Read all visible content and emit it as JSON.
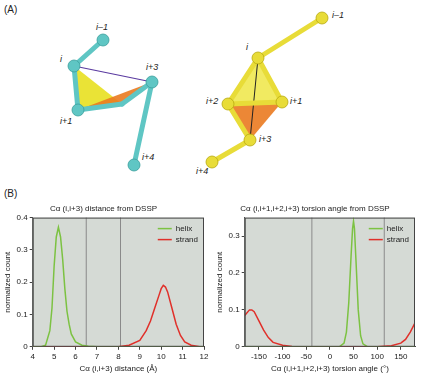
{
  "panel_a": {
    "letter": "(A)",
    "structures": [
      {
        "labels": [
          "i–1",
          "i",
          "i+1",
          "i+3",
          "i+4"
        ]
      },
      {
        "labels": [
          "i–1",
          "i",
          "i+1",
          "i+2",
          "i+3",
          "i+4"
        ]
      }
    ]
  },
  "panel_b": {
    "letter": "(B)"
  },
  "chart_data": [
    {
      "type": "line",
      "title": "Cα (i,i+3) distance from DSSP",
      "x_label": "Cα (i,i+3) distance (Å)",
      "y_label": "normalized count",
      "xlim": [
        4,
        12
      ],
      "xticks": [
        4,
        5,
        6,
        7,
        8,
        9,
        10,
        11,
        12
      ],
      "ylim": [
        0,
        0.4
      ],
      "yticks": [
        0,
        0.1,
        0.2,
        0.3,
        0.4
      ],
      "grid": false,
      "legend": "upper right",
      "vlines": [
        6.5,
        8.1
      ],
      "series": [
        {
          "name": "helix",
          "color": "#7cc242",
          "x": [
            4,
            4.4,
            4.6,
            4.8,
            4.9,
            5.0,
            5.1,
            5.2,
            5.3,
            5.4,
            5.5,
            5.6,
            5.7,
            5.8,
            6.0,
            6.3,
            6.6,
            7.0,
            12
          ],
          "values": [
            0,
            0,
            0.005,
            0.05,
            0.12,
            0.25,
            0.34,
            0.37,
            0.34,
            0.27,
            0.18,
            0.11,
            0.07,
            0.04,
            0.015,
            0.005,
            0.002,
            0,
            0
          ]
        },
        {
          "name": "strand",
          "color": "#e0302a",
          "x": [
            4,
            8.0,
            8.5,
            9.0,
            9.3,
            9.5,
            9.7,
            9.9,
            10.0,
            10.1,
            10.2,
            10.3,
            10.5,
            10.7,
            10.9,
            11.1,
            11.4,
            11.8,
            12
          ],
          "values": [
            0,
            0,
            0.005,
            0.02,
            0.05,
            0.08,
            0.12,
            0.16,
            0.18,
            0.19,
            0.185,
            0.17,
            0.12,
            0.07,
            0.035,
            0.015,
            0.005,
            0,
            0
          ]
        }
      ]
    },
    {
      "type": "line",
      "title": "Cα (i,i+1,i+2,i+3) torsion angle from DSSP",
      "x_label": "Cα (i,i+1,i+2,i+3) torsion angle (°)",
      "y_label": "normalized count",
      "xlim": [
        -180,
        180
      ],
      "xticks": [
        -150,
        -100,
        -50,
        0,
        50,
        100,
        150
      ],
      "ylim": [
        0,
        0.35
      ],
      "yticks": [
        0,
        0.1,
        0.2,
        0.3
      ],
      "grid": false,
      "legend": "upper right",
      "vlines": [
        -38,
        115
      ],
      "series": [
        {
          "name": "helix",
          "color": "#7cc242",
          "x": [
            -180,
            20,
            30,
            35,
            40,
            45,
            48,
            50,
            52,
            55,
            60,
            65,
            70,
            80,
            180
          ],
          "values": [
            0,
            0,
            0.01,
            0.04,
            0.12,
            0.25,
            0.32,
            0.34,
            0.32,
            0.24,
            0.1,
            0.03,
            0.008,
            0,
            0
          ]
        },
        {
          "name": "strand",
          "color": "#e0302a",
          "x": [
            -180,
            -170,
            -165,
            -160,
            -150,
            -140,
            -130,
            -120,
            -100,
            -80,
            -50,
            100,
            130,
            150,
            160,
            170,
            180
          ],
          "values": [
            0.085,
            0.1,
            0.1,
            0.095,
            0.07,
            0.045,
            0.025,
            0.012,
            0.004,
            0.001,
            0,
            0,
            0.003,
            0.01,
            0.02,
            0.04,
            0.065
          ]
        }
      ]
    }
  ]
}
